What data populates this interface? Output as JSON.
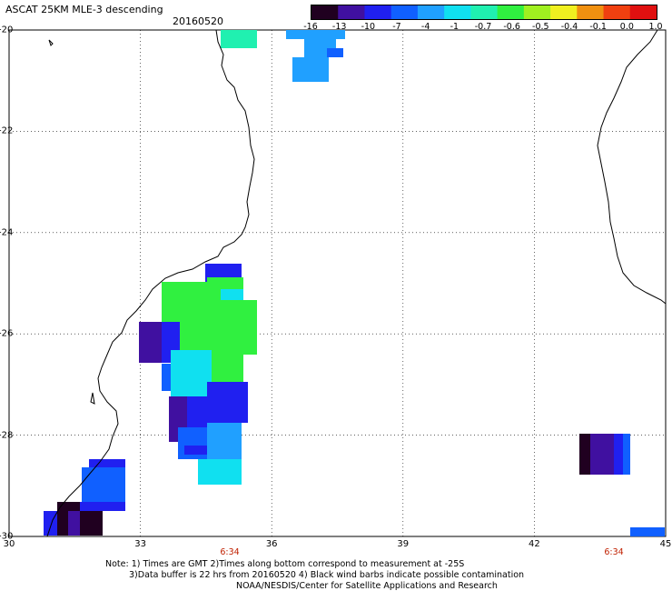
{
  "header": {
    "title": "ASCAT 25KM MLE-3 descending",
    "date": "20160520"
  },
  "colorbar": {
    "labels": [
      "-16",
      "-13",
      "-10",
      "-7",
      "-4",
      "-1",
      "-0.7",
      "-0.6",
      "-0.5",
      "-0.4",
      "-0.1",
      "0.0",
      "1.0"
    ],
    "colors": [
      "#200020",
      "#4010a0",
      "#2020f0",
      "#1060ff",
      "#20a0ff",
      "#10e0f0",
      "#20f0b0",
      "#30f040",
      "#a0f020",
      "#f0f020",
      "#f09010",
      "#f04010",
      "#e01010"
    ]
  },
  "axes": {
    "lat_labels": [
      "-20",
      "-22",
      "-24",
      "-26",
      "-28",
      "-30"
    ],
    "lon_labels": [
      "30",
      "33",
      "36",
      "39",
      "42",
      "45"
    ],
    "time_labels": [
      "6:34",
      "6:34"
    ],
    "lat_range": [
      -30,
      -20
    ],
    "lon_range": [
      30,
      45
    ],
    "grid": true
  },
  "footer": {
    "line1": "Note: 1) Times are GMT 2)Times along bottom correspond to measurement at -25S",
    "line2": "3)Data buffer is 22 hrs from 20160520 4) Black wind barbs indicate possible contamination",
    "line3": "NOAA/NESDIS/Center for Satellite Applications and Research"
  }
}
